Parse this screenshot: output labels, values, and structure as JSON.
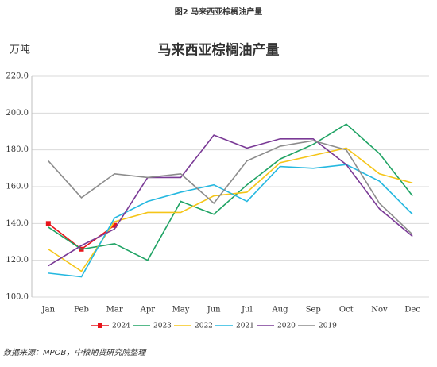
{
  "chart_data": {
    "type": "line",
    "caption": "图2 马来西亚棕榈油产量",
    "title": "马来西亚棕榈油产量",
    "y_label": "万吨",
    "source": "数据来源：MPOB，中粮期货研究院整理",
    "categories": [
      "Jan",
      "Feb",
      "Mar",
      "Apr",
      "May",
      "Jun",
      "Jul",
      "Aug",
      "Sep",
      "Oct",
      "Nov",
      "Dec"
    ],
    "ylim": [
      100,
      220
    ],
    "yticks": [
      {
        "value": 100,
        "label": "100.0"
      },
      {
        "value": 120,
        "label": "120.0"
      },
      {
        "value": 140,
        "label": "140.0"
      },
      {
        "value": 160,
        "label": "160.0"
      },
      {
        "value": 180,
        "label": "180.0"
      },
      {
        "value": 200,
        "label": "200.0"
      },
      {
        "value": 220,
        "label": "220.0"
      }
    ],
    "grid": true,
    "legend": "bottom",
    "series": [
      {
        "name": "2024",
        "color": "#e8141b",
        "marker": "square",
        "values": [
          140,
          126,
          139,
          null,
          null,
          null,
          null,
          null,
          null,
          null,
          null,
          null
        ]
      },
      {
        "name": "2023",
        "color": "#1fa364",
        "values": [
          138,
          126,
          129,
          120,
          152,
          145,
          161,
          175,
          183,
          194,
          178,
          155
        ]
      },
      {
        "name": "2022",
        "color": "#f5c518",
        "values": [
          126,
          114,
          141,
          146,
          146,
          155,
          157,
          173,
          177,
          181,
          167,
          162
        ]
      },
      {
        "name": "2021",
        "color": "#25b8e0",
        "values": [
          113,
          111,
          143,
          152,
          157,
          161,
          152,
          171,
          170,
          172,
          163,
          145
        ]
      },
      {
        "name": "2020",
        "color": "#7a3a96",
        "values": [
          117,
          128,
          137,
          165,
          165,
          188,
          181,
          186,
          186,
          172,
          148,
          133
        ]
      },
      {
        "name": "2019",
        "color": "#8c8c8c",
        "values": [
          174,
          154,
          167,
          165,
          167,
          151,
          174,
          182,
          185,
          180,
          151,
          134
        ]
      }
    ]
  }
}
